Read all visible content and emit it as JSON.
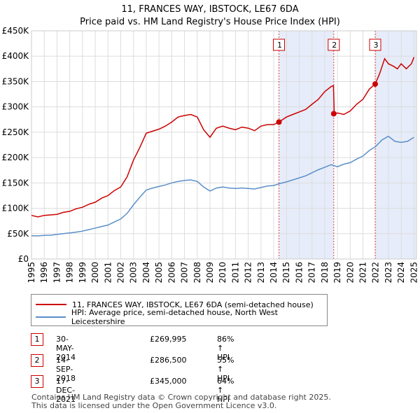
{
  "chart_data": {
    "type": "line",
    "title": "11, FRANCES WAY, IBSTOCK, LE67 6DA",
    "subtitle": "Price paid vs. HM Land Registry's House Price Index (HPI)",
    "xlim": [
      1995,
      2025.2
    ],
    "ylim": [
      0,
      450000
    ],
    "y_ticks": [
      0,
      50000,
      100000,
      150000,
      200000,
      250000,
      300000,
      350000,
      400000,
      450000
    ],
    "y_tick_labels": [
      "£0",
      "£50K",
      "£100K",
      "£150K",
      "£200K",
      "£250K",
      "£300K",
      "£350K",
      "£400K",
      "£450K"
    ],
    "x_ticks": [
      1995,
      1996,
      1997,
      1998,
      1999,
      2000,
      2001,
      2002,
      2003,
      2004,
      2005,
      2006,
      2007,
      2008,
      2009,
      2010,
      2011,
      2012,
      2013,
      2014,
      2015,
      2016,
      2017,
      2018,
      2019,
      2020,
      2021,
      2022,
      2023,
      2024,
      2025
    ],
    "x_tick_labels": [
      "1995",
      "1996",
      "1997",
      "1998",
      "1999",
      "2000",
      "2001",
      "2002",
      "2003",
      "2004",
      "2005",
      "2006",
      "2007",
      "2008",
      "2009",
      "2010",
      "2011",
      "2012",
      "2013",
      "2014",
      "2015",
      "2016",
      "2017",
      "2018",
      "2019",
      "2020",
      "2021",
      "2022",
      "2023",
      "2024",
      "2025"
    ],
    "series": [
      {
        "name": "11, FRANCES WAY, IBSTOCK, LE67 6DA (semi-detached house)",
        "color": "#cc0000",
        "x": [
          1995.0,
          1995.5,
          1996.0,
          1996.5,
          1997.0,
          1997.5,
          1998.0,
          1998.5,
          1999.0,
          1999.5,
          2000.0,
          2000.5,
          2001.0,
          2001.5,
          2002.0,
          2002.5,
          2003.0,
          2003.5,
          2004.0,
          2004.5,
          2005.0,
          2005.5,
          2006.0,
          2006.5,
          2007.0,
          2007.5,
          2008.0,
          2008.5,
          2009.0,
          2009.5,
          2010.0,
          2010.5,
          2011.0,
          2011.5,
          2012.0,
          2012.5,
          2013.0,
          2013.5,
          2014.0,
          2014.41,
          2015.0,
          2015.5,
          2016.0,
          2016.5,
          2017.0,
          2017.5,
          2018.0,
          2018.5,
          2018.69,
          2018.75,
          2019.0,
          2019.5,
          2020.0,
          2020.5,
          2021.0,
          2021.5,
          2021.96,
          2022.3,
          2022.7,
          2023.0,
          2023.4,
          2023.7,
          2024.0,
          2024.4,
          2024.8,
          2025.0
        ],
        "values": [
          86000,
          83000,
          86000,
          87000,
          88000,
          92000,
          94000,
          99000,
          102000,
          108000,
          112000,
          120000,
          125000,
          135000,
          142000,
          162000,
          195000,
          220000,
          248000,
          252000,
          256000,
          262000,
          270000,
          280000,
          283000,
          285000,
          280000,
          255000,
          240000,
          258000,
          262000,
          258000,
          255000,
          260000,
          258000,
          253000,
          262000,
          265000,
          265000,
          269995,
          280000,
          285000,
          290000,
          295000,
          305000,
          315000,
          330000,
          340000,
          342000,
          286500,
          288000,
          285000,
          292000,
          305000,
          315000,
          335000,
          345000,
          365000,
          395000,
          385000,
          380000,
          375000,
          385000,
          375000,
          385000,
          398000
        ]
      },
      {
        "name": "HPI: Average price, semi-detached house, North West Leicestershire",
        "color": "#5b8fc9",
        "x": [
          1995.0,
          1995.5,
          1996.0,
          1996.5,
          1997.0,
          1997.5,
          1998.0,
          1998.5,
          1999.0,
          1999.5,
          2000.0,
          2000.5,
          2001.0,
          2001.5,
          2002.0,
          2002.5,
          2003.0,
          2003.5,
          2004.0,
          2004.5,
          2005.0,
          2005.5,
          2006.0,
          2006.5,
          2007.0,
          2007.5,
          2008.0,
          2008.5,
          2009.0,
          2009.5,
          2010.0,
          2010.5,
          2011.0,
          2011.5,
          2012.0,
          2012.5,
          2013.0,
          2013.5,
          2014.0,
          2014.5,
          2015.0,
          2015.5,
          2016.0,
          2016.5,
          2017.0,
          2017.5,
          2018.0,
          2018.5,
          2019.0,
          2019.5,
          2020.0,
          2020.5,
          2021.0,
          2021.5,
          2022.0,
          2022.5,
          2023.0,
          2023.5,
          2024.0,
          2024.5,
          2025.0
        ],
        "values": [
          46000,
          45500,
          46500,
          47000,
          48500,
          50000,
          51500,
          53000,
          55000,
          58000,
          61000,
          64000,
          67000,
          73000,
          79000,
          90000,
          107000,
          122000,
          136000,
          140000,
          143000,
          146000,
          150000,
          153000,
          155000,
          156000,
          153000,
          142000,
          134000,
          140000,
          142000,
          140000,
          139000,
          140000,
          139000,
          138000,
          141000,
          144000,
          145000,
          149000,
          152000,
          156000,
          160000,
          164000,
          170000,
          176000,
          181000,
          186000,
          182000,
          187000,
          190000,
          197000,
          203000,
          214000,
          222000,
          235000,
          242000,
          232000,
          230000,
          232000,
          240000
        ]
      }
    ],
    "sale_markers": [
      {
        "label": "1",
        "x": 2014.41,
        "value": 269995
      },
      {
        "label": "2",
        "x": 2018.71,
        "value": 286500
      },
      {
        "label": "3",
        "x": 2021.96,
        "value": 345000
      }
    ],
    "shaded_ranges": [
      [
        2014.41,
        2018.71
      ],
      [
        2021.96,
        2025.2
      ]
    ]
  },
  "legend": {
    "property_label": "11, FRANCES WAY, IBSTOCK, LE67 6DA (semi-detached house)",
    "hpi_label": "HPI: Average price, semi-detached house, North West Leicestershire",
    "property_color": "#cc0000",
    "hpi_color": "#5b8fc9"
  },
  "sales": [
    {
      "num": "1",
      "date": "30-MAY-2014",
      "price": "£269,995",
      "hpi": "86% ↑ HPI"
    },
    {
      "num": "2",
      "date": "14-SEP-2018",
      "price": "£286,500",
      "hpi": "55% ↑ HPI"
    },
    {
      "num": "3",
      "date": "17-DEC-2021",
      "price": "£345,000",
      "hpi": "64% ↑ HPI"
    }
  ],
  "footer": {
    "line1": "Contains HM Land Registry data © Crown copyright and database right 2025.",
    "line2": "This data is licensed under the Open Government Licence v3.0."
  }
}
